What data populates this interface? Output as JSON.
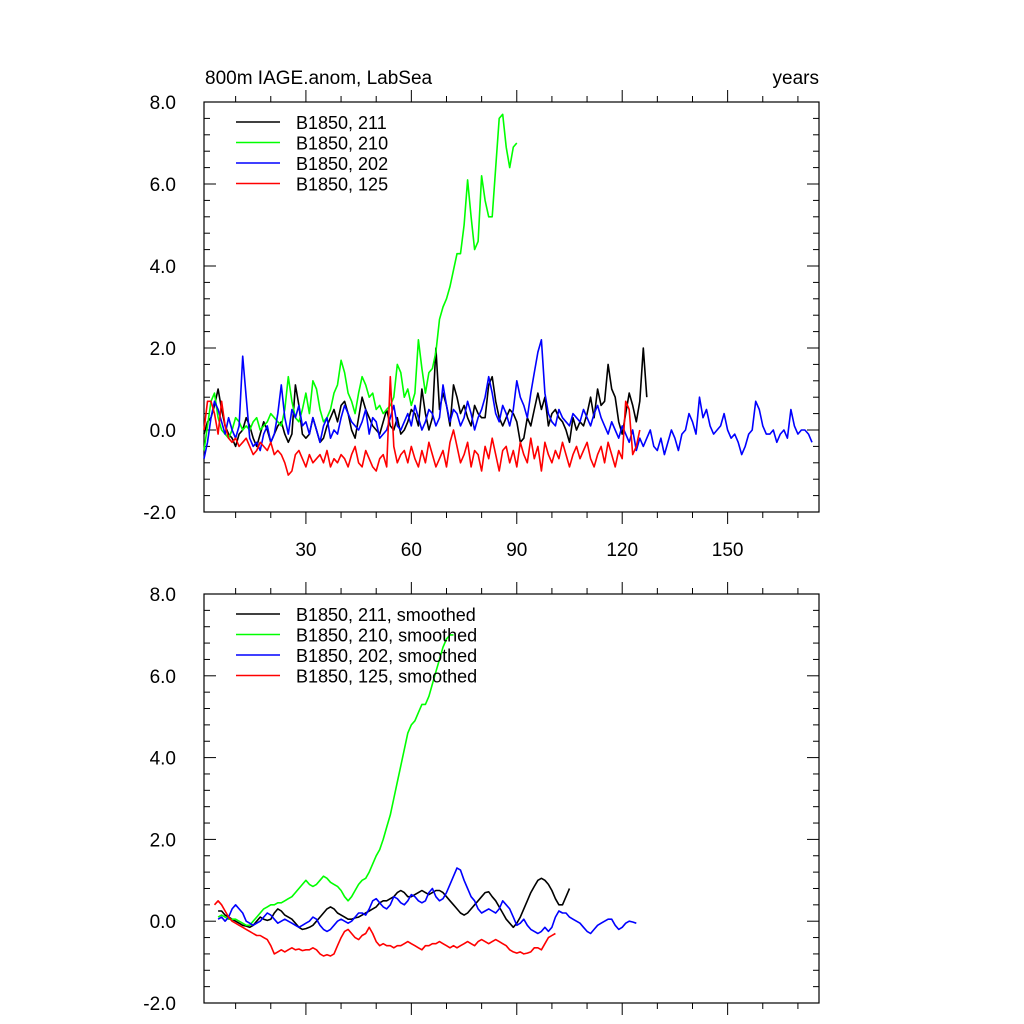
{
  "chart_data": [
    {
      "type": "line",
      "title": "800m IAGE.anom, LabSea",
      "right_title": "years",
      "xlim": [
        1,
        176
      ],
      "ylim": [
        -2.0,
        8.0
      ],
      "x_ticks": [
        30,
        60,
        90,
        120,
        150
      ],
      "x_tick_labels": [
        "30",
        "60",
        "90",
        "120",
        "150"
      ],
      "y_ticks": [
        -2.0,
        0.0,
        2.0,
        4.0,
        6.0,
        8.0
      ],
      "y_tick_labels": [
        "-2.0",
        "0.0",
        "2.0",
        "4.0",
        "6.0",
        "8.0"
      ],
      "legend_position": "top-left",
      "series": [
        {
          "name": "B1850, 211",
          "color": "#000000",
          "x_start": 1,
          "values": [
            -0.1,
            0.2,
            0.3,
            0.6,
            1.0,
            0.5,
            0.1,
            -0.1,
            -0.2,
            -0.4,
            -0.1,
            0.0,
            0.3,
            0.1,
            -0.2,
            -0.4,
            -0.1,
            0.2,
            0.0,
            -0.3,
            -0.1,
            0.1,
            0.2,
            -0.1,
            -0.3,
            -0.1,
            1.1,
            0.6,
            -0.1,
            -0.2,
            -0.1,
            0.3,
            0.0,
            -0.3,
            -0.2,
            0.1,
            0.3,
            0.5,
            0.2,
            0.6,
            0.7,
            0.4,
            0.0,
            -0.2,
            0.3,
            0.8,
            0.5,
            0.3,
            0.1,
            0.0,
            -0.1,
            0.2,
            0.5,
            0.1,
            0.0,
            0.3,
            -0.1,
            0.0,
            0.2,
            0.5,
            0.4,
            0.1,
            1.0,
            0.4,
            0.0,
            0.3,
            2.0,
            0.5,
            0.9,
            0.6,
            0.1,
            1.1,
            0.8,
            0.4,
            0.6,
            0.3,
            0.1,
            0.6,
            0.4,
            0.3,
            0.3,
            1.1,
            1.3,
            0.7,
            0.3,
            0.1,
            0.3,
            0.5,
            0.4,
            0.2,
            -0.3,
            -0.2,
            0.3,
            0.1,
            0.5,
            0.9,
            0.5,
            0.8,
            0.1,
            0.4,
            0.5,
            0.3,
            0.2,
            0.0,
            -0.3,
            0.3,
            0.0,
            0.2,
            0.1,
            0.4,
            0.8,
            0.3,
            1.0,
            0.6,
            0.7,
            1.6,
            1.0,
            0.8,
            0.2,
            -0.1,
            0.4,
            0.9,
            0.6,
            0.2,
            0.7,
            2.0,
            0.8
          ]
        },
        {
          "name": "B1850, 210",
          "color": "#00ff00",
          "x_start": 1,
          "values": [
            -0.5,
            0.1,
            0.7,
            0.9,
            0.3,
            0.0,
            -0.1,
            -0.2,
            0.0,
            0.3,
            0.2,
            0.0,
            0.1,
            0.0,
            0.2,
            0.3,
            0.0,
            0.1,
            0.2,
            0.4,
            0.3,
            0.2,
            0.1,
            0.5,
            1.3,
            0.7,
            0.3,
            0.2,
            0.5,
            0.9,
            0.4,
            1.2,
            1.0,
            0.5,
            0.2,
            0.3,
            0.5,
            0.9,
            1.1,
            1.7,
            1.4,
            0.9,
            0.7,
            0.4,
            0.9,
            1.3,
            1.1,
            0.8,
            0.9,
            0.5,
            0.6,
            0.4,
            0.5,
            0.6,
            0.8,
            1.6,
            1.4,
            0.8,
            1.0,
            0.6,
            0.9,
            2.2,
            1.5,
            0.9,
            1.4,
            1.5,
            1.9,
            2.7,
            3.0,
            3.2,
            3.5,
            3.9,
            4.3,
            4.3,
            5.0,
            6.1,
            5.2,
            4.4,
            4.6,
            6.2,
            5.6,
            5.2,
            5.2,
            6.4,
            7.6,
            7.7,
            6.9,
            6.4,
            6.9,
            7.0
          ]
        },
        {
          "name": "B1850, 202",
          "color": "#0000ff",
          "x_start": 1,
          "values": [
            -0.7,
            -0.3,
            0.3,
            0.7,
            0.5,
            0.2,
            -0.1,
            0.3,
            0.0,
            -0.2,
            0.1,
            1.8,
            0.8,
            -0.2,
            -0.4,
            -0.3,
            -0.5,
            -0.1,
            0.1,
            -0.3,
            -0.1,
            0.4,
            1.1,
            0.3,
            -0.1,
            0.5,
            0.3,
            0.6,
            0.1,
            0.2,
            -0.1,
            0.3,
            0.0,
            -0.3,
            0.1,
            0.3,
            -0.2,
            0.0,
            -0.1,
            0.3,
            0.6,
            0.4,
            0.2,
            0.1,
            0.0,
            0.2,
            0.5,
            -0.1,
            0.3,
            0.2,
            -0.2,
            -0.1,
            0.0,
            0.3,
            0.6,
            0.1,
            0.0,
            0.2,
            0.4,
            0.1,
            0.6,
            0.3,
            0.0,
            0.2,
            0.5,
            0.4,
            0.1,
            0.3,
            1.1,
            0.6,
            0.2,
            0.5,
            0.4,
            0.1,
            0.3,
            0.7,
            0.4,
            0.0,
            0.3,
            0.5,
            0.8,
            1.3,
            0.9,
            0.4,
            0.2,
            0.6,
            0.4,
            0.1,
            0.5,
            1.2,
            0.8,
            0.6,
            0.3,
            0.9,
            1.4,
            1.9,
            2.2,
            0.9,
            0.4,
            0.2,
            0.1,
            0.5,
            0.3,
            0.2,
            0.1,
            0.4,
            0.3,
            0.2,
            0.5,
            0.3,
            0.1,
            0.4,
            0.6,
            0.3,
            0.1,
            -0.1,
            0.2,
            0.0,
            -0.2,
            0.1,
            -0.1,
            -0.3,
            0.0,
            -0.5,
            -0.2,
            -0.4,
            -0.2,
            0.0,
            -0.4,
            -0.5,
            -0.2,
            -0.6,
            -0.3,
            0.0,
            -0.2,
            -0.5,
            -0.1,
            0.0,
            0.4,
            0.2,
            -0.1,
            0.8,
            0.3,
            0.5,
            0.1,
            -0.1,
            0.0,
            0.1,
            0.4,
            0.0,
            -0.2,
            -0.1,
            -0.3,
            -0.6,
            -0.4,
            -0.1,
            0.0,
            0.7,
            0.5,
            0.1,
            -0.1,
            -0.1,
            0.0,
            -0.3,
            -0.1,
            0.0,
            -0.2,
            0.5,
            0.1,
            -0.1,
            0.0,
            0.0,
            -0.1,
            -0.3
          ]
        },
        {
          "name": "B1850, 125",
          "color": "#ff0000",
          "x_start": 1,
          "values": [
            0.0,
            0.7,
            0.7,
            0.4,
            -0.1,
            0.7,
            0.1,
            -0.2,
            -0.3,
            -0.2,
            -0.4,
            -0.3,
            -0.2,
            -0.4,
            -0.6,
            -0.5,
            -0.3,
            -0.4,
            -0.5,
            -0.3,
            -0.6,
            -0.5,
            -0.6,
            -0.8,
            -1.1,
            -1.0,
            -0.6,
            -0.5,
            -0.7,
            -0.9,
            -0.6,
            -0.8,
            -0.7,
            -0.6,
            -0.8,
            -0.5,
            -0.9,
            -0.7,
            -0.8,
            -0.6,
            -0.7,
            -0.9,
            -0.6,
            -0.4,
            -0.8,
            -0.9,
            -0.5,
            -0.7,
            -0.9,
            -1.0,
            -0.7,
            -0.6,
            -0.9,
            1.3,
            -0.4,
            -0.8,
            -0.6,
            -0.5,
            -0.8,
            -0.4,
            -0.7,
            -0.9,
            -0.5,
            -0.8,
            -0.3,
            -0.6,
            -0.9,
            -0.7,
            -0.5,
            -0.9,
            -0.3,
            0.0,
            -0.4,
            -0.8,
            -0.6,
            -0.3,
            -0.9,
            -0.5,
            -0.6,
            -1.0,
            -0.4,
            -0.7,
            -0.2,
            -0.6,
            -1.0,
            -0.5,
            -0.4,
            -0.8,
            -0.5,
            -0.9,
            -0.3,
            -0.6,
            -0.8,
            -0.2,
            -0.7,
            -0.4,
            -1.0,
            -0.3,
            -0.6,
            -0.8,
            -0.5,
            -0.7,
            -0.3,
            -0.6,
            -0.9,
            -0.6,
            -0.4,
            -0.7,
            -0.5,
            -0.3,
            -0.7,
            -0.9,
            -0.6,
            -0.4,
            -0.8,
            -0.3,
            -0.6,
            -0.9,
            -0.5,
            -0.7,
            0.7,
            0.5,
            -0.6,
            -0.4,
            0.0
          ]
        }
      ]
    },
    {
      "type": "line",
      "xlim": [
        1,
        176
      ],
      "ylim": [
        -2.0,
        8.0
      ],
      "y_ticks": [
        -2.0,
        0.0,
        2.0,
        4.0,
        6.0,
        8.0
      ],
      "y_tick_labels": [
        "-2.0",
        "0.0",
        "2.0",
        "4.0",
        "6.0",
        "8.0"
      ],
      "legend_position": "top-left",
      "series": [
        {
          "name": "B1850, 211, smoothed",
          "color": "#000000",
          "x_start": 5,
          "values": [
            0.25,
            0.25,
            0.15,
            0.1,
            0.05,
            0.0,
            -0.05,
            -0.1,
            -0.12,
            -0.15,
            -0.1,
            0.0,
            0.1,
            0.05,
            0.02,
            0.05,
            0.2,
            0.3,
            0.25,
            0.15,
            0.1,
            0.05,
            -0.05,
            -0.15,
            -0.2,
            -0.18,
            -0.15,
            -0.1,
            0.0,
            0.1,
            0.2,
            0.3,
            0.35,
            0.3,
            0.2,
            0.15,
            0.1,
            0.05,
            0.05,
            0.08,
            0.1,
            0.15,
            0.2,
            0.25,
            0.3,
            0.35,
            0.45,
            0.5,
            0.5,
            0.55,
            0.6,
            0.7,
            0.75,
            0.7,
            0.6,
            0.6,
            0.65,
            0.7,
            0.75,
            0.7,
            0.65,
            0.7,
            0.75,
            0.75,
            0.7,
            0.6,
            0.5,
            0.4,
            0.3,
            0.2,
            0.15,
            0.2,
            0.3,
            0.4,
            0.5,
            0.6,
            0.7,
            0.72,
            0.6,
            0.5,
            0.35,
            0.2,
            0.05,
            -0.05,
            -0.15,
            -0.05,
            0.1,
            0.3,
            0.5,
            0.7,
            0.85,
            1.0,
            1.05,
            1.0,
            0.9,
            0.75,
            0.55,
            0.4,
            0.4,
            0.6,
            0.8
          ]
        },
        {
          "name": "B1850, 210, smoothed",
          "color": "#00ff00",
          "x_start": 5,
          "values": [
            0.1,
            0.15,
            0.1,
            0.05,
            0.05,
            0.05,
            0.0,
            -0.05,
            -0.1,
            -0.1,
            0.0,
            0.1,
            0.2,
            0.3,
            0.35,
            0.4,
            0.4,
            0.45,
            0.45,
            0.5,
            0.55,
            0.6,
            0.7,
            0.8,
            0.9,
            1.0,
            0.9,
            0.85,
            0.9,
            1.0,
            1.1,
            1.05,
            0.95,
            0.9,
            0.85,
            0.75,
            0.6,
            0.5,
            0.6,
            0.75,
            0.9,
            1.0,
            1.05,
            1.2,
            1.4,
            1.6,
            1.75,
            2.0,
            2.3,
            2.6,
            3.0,
            3.4,
            3.8,
            4.2,
            4.6,
            4.8,
            4.9,
            5.1,
            5.3,
            5.3,
            5.5,
            5.8,
            6.1,
            6.4,
            6.7,
            6.9,
            7.0,
            7.0
          ]
        },
        {
          "name": "B1850, 202, smoothed",
          "color": "#0000ff",
          "x_start": 5,
          "values": [
            0.05,
            0.1,
            0.0,
            0.1,
            0.3,
            0.4,
            0.3,
            0.2,
            0.0,
            -0.05,
            -0.1,
            -0.05,
            0.0,
            0.1,
            0.2,
            0.15,
            0.05,
            -0.05,
            0.0,
            0.05,
            0.0,
            -0.05,
            -0.1,
            -0.15,
            -0.1,
            -0.05,
            0.0,
            0.1,
            0.05,
            -0.1,
            -0.2,
            -0.25,
            -0.2,
            -0.1,
            0.0,
            0.05,
            0.0,
            -0.05,
            0.0,
            0.1,
            0.2,
            0.2,
            0.15,
            0.3,
            0.5,
            0.55,
            0.45,
            0.35,
            0.3,
            0.4,
            0.6,
            0.55,
            0.45,
            0.4,
            0.5,
            0.65,
            0.6,
            0.5,
            0.45,
            0.5,
            0.7,
            0.8,
            0.6,
            0.5,
            0.55,
            0.7,
            0.9,
            1.1,
            1.3,
            1.25,
            1.0,
            0.8,
            0.6,
            0.5,
            0.3,
            0.2,
            0.25,
            0.3,
            0.25,
            0.2,
            0.3,
            0.5,
            0.4,
            0.3,
            0.1,
            -0.1,
            -0.05,
            0.05,
            -0.1,
            -0.2,
            -0.25,
            -0.3,
            -0.25,
            -0.15,
            -0.25,
            -0.15,
            0.1,
            0.25,
            0.2,
            0.2,
            0.1,
            0.05,
            0.0,
            -0.05,
            -0.15,
            -0.25,
            -0.3,
            -0.2,
            -0.1,
            -0.05,
            0.0,
            0.05,
            0.05,
            -0.1,
            -0.2,
            -0.15,
            -0.05,
            0.0,
            -0.02,
            -0.05
          ]
        },
        {
          "name": "B1850, 125, smoothed",
          "color": "#ff0000",
          "x_start": 4,
          "values": [
            0.4,
            0.5,
            0.4,
            0.25,
            0.1,
            0.0,
            -0.05,
            -0.1,
            -0.15,
            -0.2,
            -0.25,
            -0.3,
            -0.35,
            -0.35,
            -0.4,
            -0.45,
            -0.6,
            -0.8,
            -0.75,
            -0.7,
            -0.75,
            -0.7,
            -0.65,
            -0.7,
            -0.68,
            -0.72,
            -0.7,
            -0.7,
            -0.65,
            -0.7,
            -0.8,
            -0.85,
            -0.82,
            -0.85,
            -0.8,
            -0.6,
            -0.4,
            -0.25,
            -0.2,
            -0.3,
            -0.4,
            -0.45,
            -0.35,
            -0.3,
            -0.15,
            -0.3,
            -0.5,
            -0.6,
            -0.55,
            -0.6,
            -0.6,
            -0.65,
            -0.6,
            -0.6,
            -0.55,
            -0.5,
            -0.55,
            -0.6,
            -0.65,
            -0.7,
            -0.6,
            -0.6,
            -0.55,
            -0.55,
            -0.5,
            -0.55,
            -0.6,
            -0.65,
            -0.6,
            -0.65,
            -0.6,
            -0.55,
            -0.5,
            -0.55,
            -0.6,
            -0.5,
            -0.45,
            -0.5,
            -0.55,
            -0.5,
            -0.45,
            -0.5,
            -0.55,
            -0.6,
            -0.7,
            -0.75,
            -0.78,
            -0.75,
            -0.8,
            -0.78,
            -0.75,
            -0.65,
            -0.65,
            -0.7,
            -0.55,
            -0.4,
            -0.35,
            -0.3
          ]
        }
      ]
    }
  ]
}
